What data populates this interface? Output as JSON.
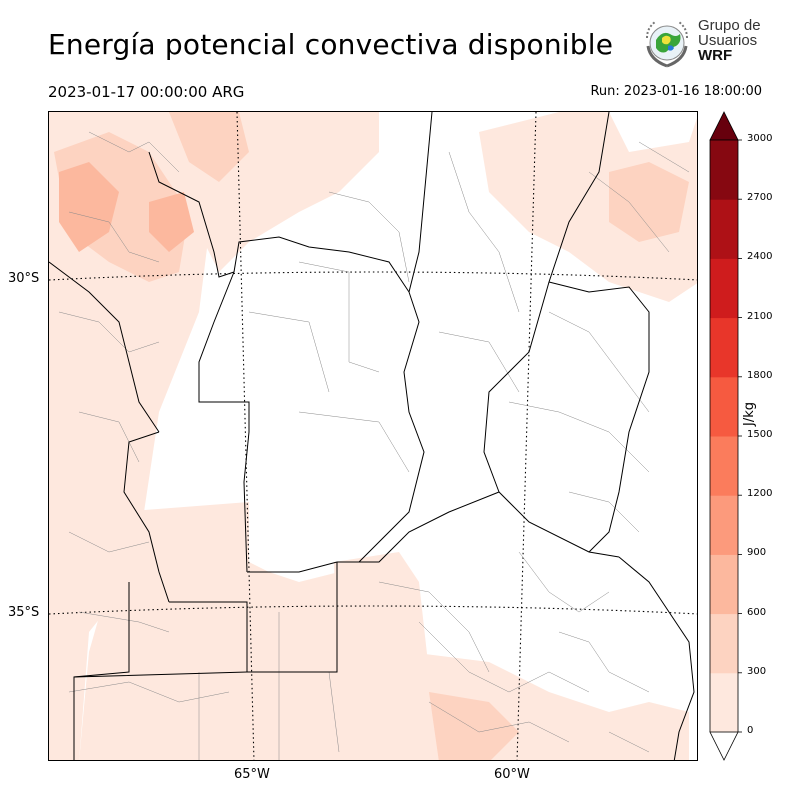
{
  "title": "Energía potencial convectiva disponible",
  "valid_time": "2023-01-17 00:00:00 ARG",
  "run_time": "Run: 2023-01-16 18:00:00",
  "logo": {
    "line1": "Grupo de",
    "line2": "Usuarios",
    "line3": "WRF",
    "icon": "globe-wreath-icon"
  },
  "map": {
    "variable": "CAPE",
    "lat_labels": [
      "30°S",
      "35°S"
    ],
    "lon_labels": [
      "65°W",
      "60°W"
    ],
    "gridlines": "dotted"
  },
  "colorbar": {
    "unit": "J/kg",
    "levels": [
      0,
      300,
      600,
      900,
      1200,
      1500,
      1800,
      2100,
      2400,
      2700,
      3000
    ],
    "tick_labels": [
      "0",
      "300",
      "600",
      "900",
      "1200",
      "1500",
      "1800",
      "2100",
      "2400",
      "2700",
      "3000"
    ],
    "colors": [
      "#fee8de",
      "#fdd3c1",
      "#fcb89e",
      "#fc9a7c",
      "#fb7c5c",
      "#f65a40",
      "#e8362a",
      "#cf1c1d",
      "#ae1116",
      "#860811"
    ],
    "extend": "both",
    "under_color": "#ffffff",
    "over_color": "#67000d"
  }
}
